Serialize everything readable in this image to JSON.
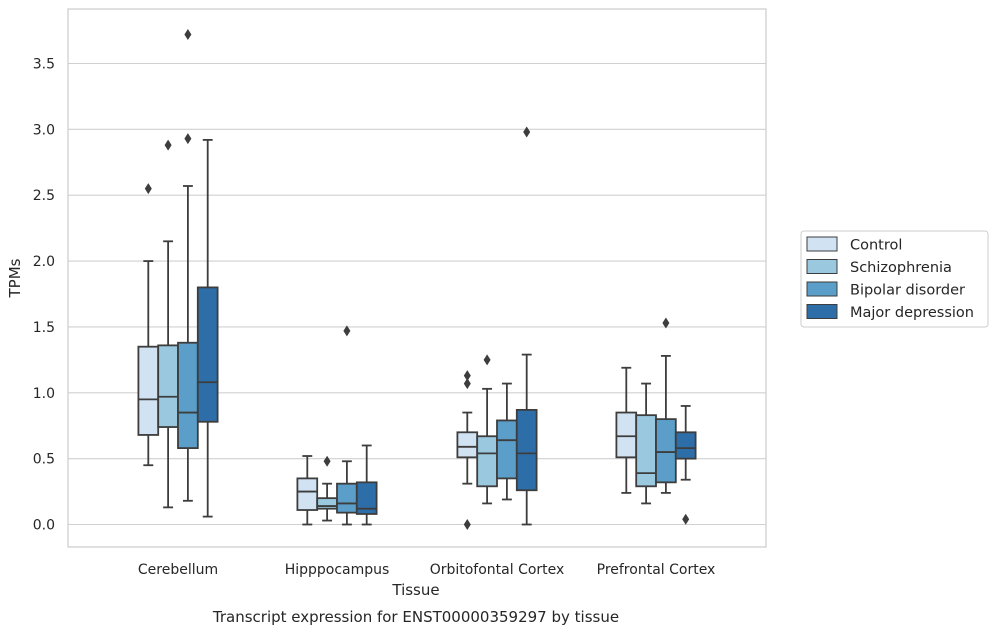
{
  "chart_data": {
    "type": "boxplot",
    "caption": "Transcript expression for ENST00000359297 by tissue",
    "xlabel": "Tissue",
    "ylabel": "TPMs",
    "ylim": [
      -0.18,
      3.9
    ],
    "yticks": [
      0.0,
      0.5,
      1.0,
      1.5,
      2.0,
      2.5,
      3.0,
      3.5
    ],
    "ytick_labels": [
      "0.0",
      "0.5",
      "1.0",
      "1.5",
      "2.0",
      "2.5",
      "3.0",
      "3.5"
    ],
    "grid": "horizontal",
    "legend_position": "outside-right",
    "categories": [
      "Cerebellum",
      "Hipppocampus",
      "Orbitofontal Cortex",
      "Prefrontal Cortex"
    ],
    "series": [
      {
        "name": "Control",
        "color": "#d1e2f2",
        "boxes": [
          {
            "whislo": 0.45,
            "q1": 0.68,
            "med": 0.95,
            "q3": 1.35,
            "whishi": 2.0,
            "fliers": [
              2.55
            ]
          },
          {
            "whislo": 0.0,
            "q1": 0.11,
            "med": 0.25,
            "q3": 0.35,
            "whishi": 0.52,
            "fliers": []
          },
          {
            "whislo": 0.31,
            "q1": 0.51,
            "med": 0.59,
            "q3": 0.7,
            "whishi": 0.85,
            "fliers": [
              1.07,
              1.13,
              0.0
            ]
          },
          {
            "whislo": 0.24,
            "q1": 0.51,
            "med": 0.67,
            "q3": 0.85,
            "whishi": 1.19,
            "fliers": []
          }
        ]
      },
      {
        "name": "Schizophrenia",
        "color": "#9ac8df",
        "boxes": [
          {
            "whislo": 0.13,
            "q1": 0.74,
            "med": 0.97,
            "q3": 1.36,
            "whishi": 2.15,
            "fliers": [
              2.88
            ]
          },
          {
            "whislo": 0.03,
            "q1": 0.12,
            "med": 0.14,
            "q3": 0.2,
            "whishi": 0.31,
            "fliers": [
              0.48
            ]
          },
          {
            "whislo": 0.16,
            "q1": 0.29,
            "med": 0.54,
            "q3": 0.67,
            "whishi": 1.03,
            "fliers": [
              1.25
            ]
          },
          {
            "whislo": 0.16,
            "q1": 0.29,
            "med": 0.39,
            "q3": 0.83,
            "whishi": 1.07,
            "fliers": []
          }
        ]
      },
      {
        "name": "Bipolar disorder",
        "color": "#5a9ec9",
        "boxes": [
          {
            "whislo": 0.18,
            "q1": 0.58,
            "med": 0.85,
            "q3": 1.38,
            "whishi": 2.57,
            "fliers": [
              2.93,
              3.72
            ]
          },
          {
            "whislo": 0.0,
            "q1": 0.09,
            "med": 0.16,
            "q3": 0.31,
            "whishi": 0.48,
            "fliers": [
              1.47
            ]
          },
          {
            "whislo": 0.19,
            "q1": 0.35,
            "med": 0.64,
            "q3": 0.79,
            "whishi": 1.07,
            "fliers": []
          },
          {
            "whislo": 0.24,
            "q1": 0.32,
            "med": 0.55,
            "q3": 0.8,
            "whishi": 1.28,
            "fliers": [
              1.53
            ]
          }
        ]
      },
      {
        "name": "Major depression",
        "color": "#2e6ea8",
        "boxes": [
          {
            "whislo": 0.06,
            "q1": 0.78,
            "med": 1.08,
            "q3": 1.8,
            "whishi": 2.92,
            "fliers": []
          },
          {
            "whislo": 0.0,
            "q1": 0.08,
            "med": 0.12,
            "q3": 0.32,
            "whishi": 0.6,
            "fliers": []
          },
          {
            "whislo": 0.0,
            "q1": 0.26,
            "med": 0.54,
            "q3": 0.87,
            "whishi": 1.29,
            "fliers": [
              2.98
            ]
          },
          {
            "whislo": 0.34,
            "q1": 0.5,
            "med": 0.58,
            "q3": 0.7,
            "whishi": 0.9,
            "fliers": [
              0.04
            ]
          }
        ]
      }
    ]
  }
}
